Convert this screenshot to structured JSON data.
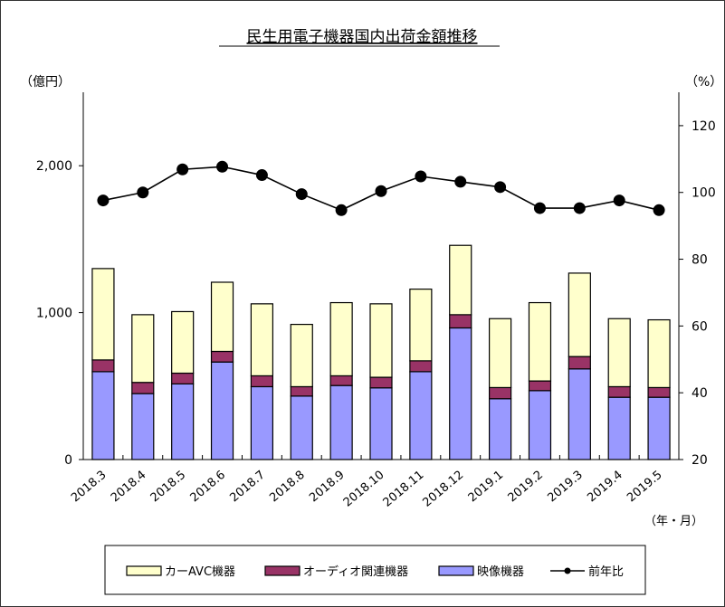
{
  "chart_data": {
    "type": "bar",
    "stacked": true,
    "title": "民生用電子機器国内出荷金額推移",
    "y_left_unit": "（億円）",
    "y_right_unit": "（%）",
    "x_unit": "（年・月）",
    "ylim_left": [
      0,
      2500
    ],
    "ylim_right": [
      20,
      130
    ],
    "yticks_left": [
      0,
      1000,
      2000
    ],
    "yticks_left_labels": [
      "0",
      "1,000",
      "2,000"
    ],
    "yticks_right": [
      20,
      40,
      60,
      80,
      100,
      120
    ],
    "yticks_right_labels": [
      "20",
      "40",
      "60",
      "80",
      "100",
      "120"
    ],
    "grid": false,
    "legend_position": "bottom",
    "categories": [
      "2018.3",
      "2018.4",
      "2018.5",
      "2018.6",
      "2018.7",
      "2018.8",
      "2018.9",
      "2018.10",
      "2018.11",
      "2018.12",
      "2019.1",
      "2019.2",
      "2019.3",
      "2019.4",
      "2019.5"
    ],
    "series": [
      {
        "name": "映像機器",
        "kind": "bar",
        "axis": "left",
        "color": "#9999ff",
        "values": [
          598,
          449,
          515,
          664,
          496,
          432,
          504,
          488,
          598,
          896,
          414,
          469,
          617,
          424,
          424
        ]
      },
      {
        "name": "オーディオ関連機器",
        "kind": "bar",
        "axis": "left",
        "color": "#993366",
        "values": [
          80,
          76,
          73,
          72,
          74,
          64,
          66,
          72,
          74,
          90,
          76,
          66,
          84,
          72,
          66
        ]
      },
      {
        "name": "カーAVC機器",
        "kind": "bar",
        "axis": "left",
        "color": "#ffffcc",
        "values": [
          622,
          461,
          419,
          471,
          490,
          424,
          498,
          500,
          488,
          472,
          469,
          533,
          568,
          463,
          461
        ]
      },
      {
        "name": "前年比",
        "kind": "line",
        "axis": "right",
        "color": "#000000",
        "values": [
          97.6,
          100.0,
          106.9,
          107.7,
          105.2,
          99.5,
          94.7,
          100.4,
          104.8,
          103.2,
          101.6,
          95.3,
          95.3,
          97.6,
          94.7
        ]
      }
    ],
    "legend": [
      "カーAVC機器",
      "オーディオ関連機器",
      "映像機器",
      "前年比"
    ]
  }
}
